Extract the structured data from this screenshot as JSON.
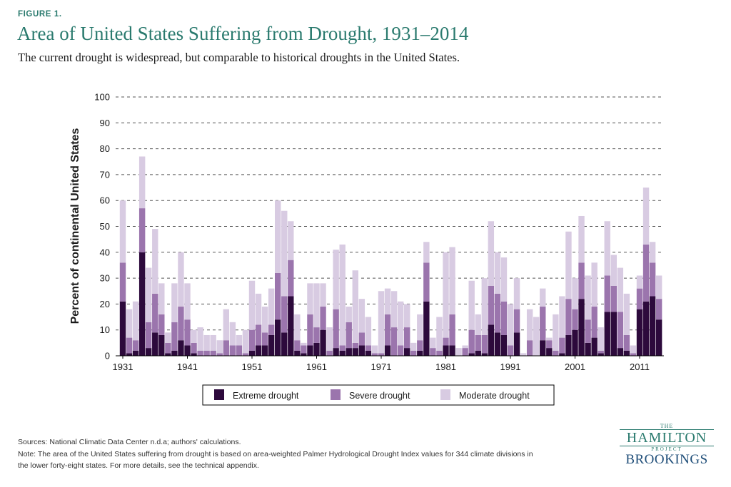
{
  "figure_label": "FIGURE 1.",
  "title": "Area of United States Suffering from Drought, 1931–2014",
  "subtitle": "The current drought is widespread, but comparable to historical droughts in the United States.",
  "sources": "Sources: National Climatic Data Center n.d.a; authors' calculations.",
  "note_line1": "Note: The area of the United States suffering from drought is based on area-weighted Palmer Hydrological Drought Index values for 344 climate divisions in",
  "note_line2": "the lower forty-eight states. For more details, see the technical appendix.",
  "logo": {
    "the": "THE",
    "name": "HAMILTON",
    "project": "PROJECT",
    "org": "BROOKINGS"
  },
  "colors": {
    "extreme": "#2d0a3c",
    "severe": "#9b75ad",
    "moderate": "#d8cbe2",
    "title": "#2a7a6e"
  },
  "chart_data": {
    "type": "bar",
    "stacked": true,
    "ylabel": "Percent of continental United States",
    "ylim": [
      0,
      100
    ],
    "yticks": [
      0,
      10,
      20,
      30,
      40,
      50,
      60,
      70,
      80,
      90,
      100
    ],
    "xticks": [
      "1931",
      "1941",
      "1951",
      "1961",
      "1971",
      "1981",
      "1991",
      "2001",
      "2011"
    ],
    "grid": true,
    "legend_position": "bottom",
    "categories": [
      1931,
      1932,
      1933,
      1934,
      1935,
      1936,
      1937,
      1938,
      1939,
      1940,
      1941,
      1942,
      1943,
      1944,
      1945,
      1946,
      1947,
      1948,
      1949,
      1950,
      1951,
      1952,
      1953,
      1954,
      1955,
      1956,
      1957,
      1958,
      1959,
      1960,
      1961,
      1962,
      1963,
      1964,
      1965,
      1966,
      1967,
      1968,
      1969,
      1970,
      1971,
      1972,
      1973,
      1974,
      1975,
      1976,
      1977,
      1978,
      1979,
      1980,
      1981,
      1982,
      1983,
      1984,
      1985,
      1986,
      1987,
      1988,
      1989,
      1990,
      1991,
      1992,
      1993,
      1994,
      1995,
      1996,
      1997,
      1998,
      1999,
      2000,
      2001,
      2002,
      2003,
      2004,
      2005,
      2006,
      2007,
      2008,
      2009,
      2010,
      2011,
      2012,
      2013,
      2014
    ],
    "series": [
      {
        "name": "Extreme drought",
        "values": [
          21,
          1,
          2,
          40,
          3,
          9,
          8,
          1,
          2,
          6,
          4,
          1,
          0,
          0,
          0,
          0,
          0,
          0,
          0,
          0,
          2,
          4,
          4,
          8,
          14,
          9,
          23,
          2,
          1,
          4,
          5,
          10,
          0,
          3,
          2,
          3,
          3,
          4,
          2,
          0,
          0,
          4,
          0,
          0,
          3,
          0,
          2,
          21,
          0,
          0,
          4,
          4,
          0,
          0,
          1,
          2,
          1,
          12,
          9,
          8,
          0,
          9,
          0,
          0,
          0,
          6,
          3,
          0,
          1,
          8,
          10,
          22,
          5,
          7,
          1,
          17,
          17,
          3,
          2,
          0,
          18,
          21,
          23,
          14
        ]
      },
      {
        "name": "Severe drought",
        "values": [
          15,
          6,
          4,
          17,
          10,
          15,
          8,
          4,
          11,
          13,
          10,
          4,
          2,
          2,
          2,
          1,
          6,
          4,
          4,
          1,
          8,
          8,
          5,
          4,
          18,
          14,
          14,
          4,
          3,
          12,
          6,
          9,
          2,
          15,
          2,
          10,
          2,
          5,
          2,
          1,
          1,
          12,
          11,
          4,
          8,
          2,
          4,
          15,
          3,
          2,
          3,
          12,
          0,
          3,
          9,
          6,
          7,
          15,
          15,
          13,
          4,
          9,
          0,
          6,
          0,
          13,
          3,
          2,
          6,
          14,
          8,
          14,
          9,
          12,
          1,
          14,
          10,
          14,
          6,
          1,
          8,
          22,
          13,
          8
        ]
      },
      {
        "name": "Moderate drought",
        "values": [
          24,
          11,
          15,
          20,
          21,
          25,
          12,
          4,
          15,
          21,
          14,
          5,
          9,
          6,
          6,
          5,
          12,
          9,
          4,
          9,
          19,
          12,
          10,
          14,
          28,
          33,
          15,
          10,
          1,
          12,
          17,
          9,
          9,
          23,
          39,
          6,
          28,
          13,
          11,
          3,
          24,
          10,
          14,
          17,
          9,
          3,
          10,
          8,
          4,
          13,
          33,
          26,
          3,
          1,
          19,
          8,
          22,
          25,
          16,
          17,
          16,
          12,
          1,
          12,
          15,
          7,
          1,
          14,
          16,
          26,
          12,
          18,
          17,
          17,
          9,
          21,
          12,
          17,
          16,
          3,
          5,
          22,
          8,
          9
        ]
      }
    ]
  }
}
